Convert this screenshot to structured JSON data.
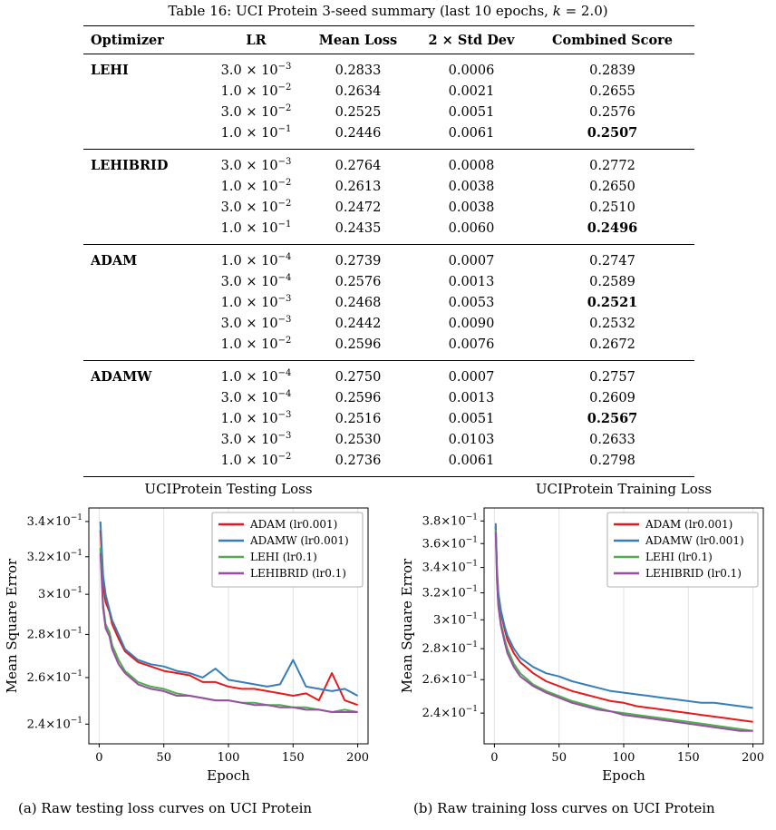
{
  "table": {
    "caption": "Table 16: UCI Protein 3-seed summary (last 10 epochs, k = 2.0)",
    "headers": [
      "Optimizer",
      "LR",
      "Mean Loss",
      "2 × Std Dev",
      "Combined Score"
    ],
    "groups": [
      {
        "optimizer": "LEHI",
        "rows": [
          {
            "lr_mant": "3.0",
            "lr_exp": "−3",
            "mean": "0.2833",
            "std": "0.0006",
            "score": "0.2839",
            "best": false
          },
          {
            "lr_mant": "1.0",
            "lr_exp": "−2",
            "mean": "0.2634",
            "std": "0.0021",
            "score": "0.2655",
            "best": false
          },
          {
            "lr_mant": "3.0",
            "lr_exp": "−2",
            "mean": "0.2525",
            "std": "0.0051",
            "score": "0.2576",
            "best": false
          },
          {
            "lr_mant": "1.0",
            "lr_exp": "−1",
            "mean": "0.2446",
            "std": "0.0061",
            "score": "0.2507",
            "best": true
          }
        ]
      },
      {
        "optimizer": "LEHIBRID",
        "rows": [
          {
            "lr_mant": "3.0",
            "lr_exp": "−3",
            "mean": "0.2764",
            "std": "0.0008",
            "score": "0.2772",
            "best": false
          },
          {
            "lr_mant": "1.0",
            "lr_exp": "−2",
            "mean": "0.2613",
            "std": "0.0038",
            "score": "0.2650",
            "best": false
          },
          {
            "lr_mant": "3.0",
            "lr_exp": "−2",
            "mean": "0.2472",
            "std": "0.0038",
            "score": "0.2510",
            "best": false
          },
          {
            "lr_mant": "1.0",
            "lr_exp": "−1",
            "mean": "0.2435",
            "std": "0.0060",
            "score": "0.2496",
            "best": true
          }
        ]
      },
      {
        "optimizer": "ADAM",
        "rows": [
          {
            "lr_mant": "1.0",
            "lr_exp": "−4",
            "mean": "0.2739",
            "std": "0.0007",
            "score": "0.2747",
            "best": false
          },
          {
            "lr_mant": "3.0",
            "lr_exp": "−4",
            "mean": "0.2576",
            "std": "0.0013",
            "score": "0.2589",
            "best": false
          },
          {
            "lr_mant": "1.0",
            "lr_exp": "−3",
            "mean": "0.2468",
            "std": "0.0053",
            "score": "0.2521",
            "best": true
          },
          {
            "lr_mant": "3.0",
            "lr_exp": "−3",
            "mean": "0.2442",
            "std": "0.0090",
            "score": "0.2532",
            "best": false
          },
          {
            "lr_mant": "1.0",
            "lr_exp": "−2",
            "mean": "0.2596",
            "std": "0.0076",
            "score": "0.2672",
            "best": false
          }
        ]
      },
      {
        "optimizer": "ADAMW",
        "rows": [
          {
            "lr_mant": "1.0",
            "lr_exp": "−4",
            "mean": "0.2750",
            "std": "0.0007",
            "score": "0.2757",
            "best": false
          },
          {
            "lr_mant": "3.0",
            "lr_exp": "−4",
            "mean": "0.2596",
            "std": "0.0013",
            "score": "0.2609",
            "best": false
          },
          {
            "lr_mant": "1.0",
            "lr_exp": "−3",
            "mean": "0.2516",
            "std": "0.0051",
            "score": "0.2567",
            "best": true
          },
          {
            "lr_mant": "3.0",
            "lr_exp": "−3",
            "mean": "0.2530",
            "std": "0.0103",
            "score": "0.2633",
            "best": false
          },
          {
            "lr_mant": "1.0",
            "lr_exp": "−2",
            "mean": "0.2736",
            "std": "0.0061",
            "score": "0.2798",
            "best": false
          }
        ]
      }
    ]
  },
  "chart_data": [
    {
      "type": "line",
      "title": "UCIProtein Testing Loss",
      "xlabel": "Epoch",
      "ylabel": "Mean Square Error",
      "yscale": "log",
      "xlim": [
        -8,
        208
      ],
      "ylim": [
        0.232,
        0.348
      ],
      "xticks": [
        0,
        50,
        100,
        150,
        200
      ],
      "yticks": [
        0.24,
        0.26,
        0.28,
        0.3,
        0.32,
        0.34
      ],
      "ytick_labels": [
        [
          "2.4",
          "−1"
        ],
        [
          "2.6",
          "−1"
        ],
        [
          "2.8",
          "−1"
        ],
        [
          "3",
          "−1"
        ],
        [
          "3.2",
          "−1"
        ],
        [
          "3.4",
          "−1"
        ]
      ],
      "grid": "x",
      "legend": "top-right",
      "caption": "(a) Raw testing loss curves on UCI Protein",
      "series": [
        {
          "name": "ADAM (lr0.001)",
          "color": "#e41a1c",
          "x": [
            1,
            3,
            5,
            8,
            10,
            15,
            20,
            30,
            40,
            50,
            60,
            70,
            80,
            90,
            100,
            110,
            120,
            130,
            140,
            150,
            160,
            170,
            180,
            190,
            200
          ],
          "y": [
            0.335,
            0.305,
            0.296,
            0.291,
            0.285,
            0.278,
            0.272,
            0.267,
            0.265,
            0.263,
            0.262,
            0.261,
            0.258,
            0.258,
            0.256,
            0.255,
            0.255,
            0.254,
            0.253,
            0.252,
            0.253,
            0.25,
            0.262,
            0.25,
            0.248
          ]
        },
        {
          "name": "ADAMW (lr0.001)",
          "color": "#377eb8",
          "x": [
            1,
            3,
            5,
            8,
            10,
            15,
            20,
            30,
            40,
            50,
            60,
            70,
            80,
            90,
            100,
            110,
            120,
            130,
            140,
            150,
            160,
            170,
            180,
            190,
            200
          ],
          "y": [
            0.34,
            0.31,
            0.3,
            0.292,
            0.287,
            0.28,
            0.273,
            0.268,
            0.266,
            0.265,
            0.263,
            0.262,
            0.26,
            0.264,
            0.259,
            0.258,
            0.257,
            0.256,
            0.257,
            0.268,
            0.256,
            0.255,
            0.254,
            0.255,
            0.252
          ]
        },
        {
          "name": "LEHI (lr0.1)",
          "color": "#4daf4a",
          "x": [
            1,
            3,
            5,
            8,
            10,
            15,
            20,
            30,
            40,
            50,
            60,
            70,
            80,
            90,
            100,
            110,
            120,
            130,
            140,
            150,
            160,
            170,
            180,
            190,
            200
          ],
          "y": [
            0.325,
            0.295,
            0.285,
            0.281,
            0.275,
            0.268,
            0.263,
            0.258,
            0.256,
            0.255,
            0.253,
            0.252,
            0.251,
            0.25,
            0.25,
            0.249,
            0.249,
            0.248,
            0.248,
            0.247,
            0.247,
            0.246,
            0.245,
            0.246,
            0.245
          ]
        },
        {
          "name": "LEHIBRID (lr0.1)",
          "color": "#984ea3",
          "x": [
            1,
            3,
            5,
            8,
            10,
            15,
            20,
            30,
            40,
            50,
            60,
            70,
            80,
            90,
            100,
            110,
            120,
            130,
            140,
            150,
            160,
            170,
            180,
            190,
            200
          ],
          "y": [
            0.322,
            0.293,
            0.283,
            0.279,
            0.273,
            0.266,
            0.262,
            0.257,
            0.255,
            0.254,
            0.252,
            0.252,
            0.251,
            0.25,
            0.25,
            0.249,
            0.248,
            0.248,
            0.247,
            0.247,
            0.246,
            0.246,
            0.245,
            0.245,
            0.245
          ]
        }
      ]
    },
    {
      "type": "line",
      "title": "UCIProtein Training Loss",
      "xlabel": "Epoch",
      "ylabel": "Mean Square Error",
      "yscale": "log",
      "xlim": [
        -8,
        208
      ],
      "ylim": [
        0.223,
        0.392
      ],
      "xticks": [
        0,
        50,
        100,
        150,
        200
      ],
      "yticks": [
        0.24,
        0.26,
        0.28,
        0.3,
        0.32,
        0.34,
        0.36,
        0.38
      ],
      "ytick_labels": [
        [
          "2.4",
          "−1"
        ],
        [
          "2.6",
          "−1"
        ],
        [
          "2.8",
          "−1"
        ],
        [
          "3",
          "−1"
        ],
        [
          "3.2",
          "−1"
        ],
        [
          "3.4",
          "−1"
        ],
        [
          "3.6",
          "−1"
        ],
        [
          "3.8",
          "−1"
        ]
      ],
      "grid": "x",
      "legend": "top-right",
      "caption": "(b) Raw training loss curves on UCI Protein",
      "series": [
        {
          "name": "ADAM (lr0.001)",
          "color": "#e41a1c",
          "x": [
            1,
            2,
            3,
            5,
            8,
            10,
            15,
            20,
            30,
            40,
            50,
            60,
            70,
            80,
            90,
            100,
            110,
            120,
            130,
            140,
            150,
            160,
            170,
            180,
            190,
            200
          ],
          "y": [
            0.375,
            0.335,
            0.318,
            0.305,
            0.293,
            0.286,
            0.277,
            0.271,
            0.264,
            0.259,
            0.256,
            0.253,
            0.251,
            0.249,
            0.247,
            0.246,
            0.244,
            0.243,
            0.242,
            0.241,
            0.24,
            0.239,
            0.238,
            0.237,
            0.236,
            0.235
          ]
        },
        {
          "name": "ADAMW (lr0.001)",
          "color": "#377eb8",
          "x": [
            1,
            2,
            3,
            5,
            8,
            10,
            15,
            20,
            30,
            40,
            50,
            60,
            70,
            80,
            90,
            100,
            110,
            120,
            130,
            140,
            150,
            160,
            170,
            180,
            190,
            200
          ],
          "y": [
            0.378,
            0.338,
            0.32,
            0.307,
            0.295,
            0.289,
            0.28,
            0.274,
            0.268,
            0.264,
            0.262,
            0.259,
            0.257,
            0.255,
            0.253,
            0.252,
            0.251,
            0.25,
            0.249,
            0.248,
            0.247,
            0.246,
            0.246,
            0.245,
            0.244,
            0.243
          ]
        },
        {
          "name": "LEHI (lr0.1)",
          "color": "#4daf4a",
          "x": [
            1,
            2,
            3,
            5,
            8,
            10,
            15,
            20,
            30,
            40,
            50,
            60,
            70,
            80,
            90,
            100,
            110,
            120,
            130,
            140,
            150,
            160,
            170,
            180,
            190,
            200
          ],
          "y": [
            0.372,
            0.33,
            0.312,
            0.298,
            0.286,
            0.28,
            0.27,
            0.264,
            0.257,
            0.253,
            0.25,
            0.247,
            0.245,
            0.243,
            0.241,
            0.24,
            0.239,
            0.238,
            0.237,
            0.236,
            0.235,
            0.234,
            0.233,
            0.232,
            0.231,
            0.23
          ]
        },
        {
          "name": "LEHIBRID (lr0.1)",
          "color": "#984ea3",
          "x": [
            1,
            2,
            3,
            5,
            8,
            10,
            15,
            20,
            30,
            40,
            50,
            60,
            70,
            80,
            90,
            100,
            110,
            120,
            130,
            140,
            150,
            160,
            170,
            180,
            190,
            200
          ],
          "y": [
            0.37,
            0.328,
            0.31,
            0.296,
            0.284,
            0.277,
            0.268,
            0.262,
            0.256,
            0.252,
            0.249,
            0.246,
            0.244,
            0.242,
            0.241,
            0.239,
            0.238,
            0.237,
            0.236,
            0.235,
            0.234,
            0.233,
            0.232,
            0.231,
            0.23,
            0.23
          ]
        }
      ]
    }
  ]
}
